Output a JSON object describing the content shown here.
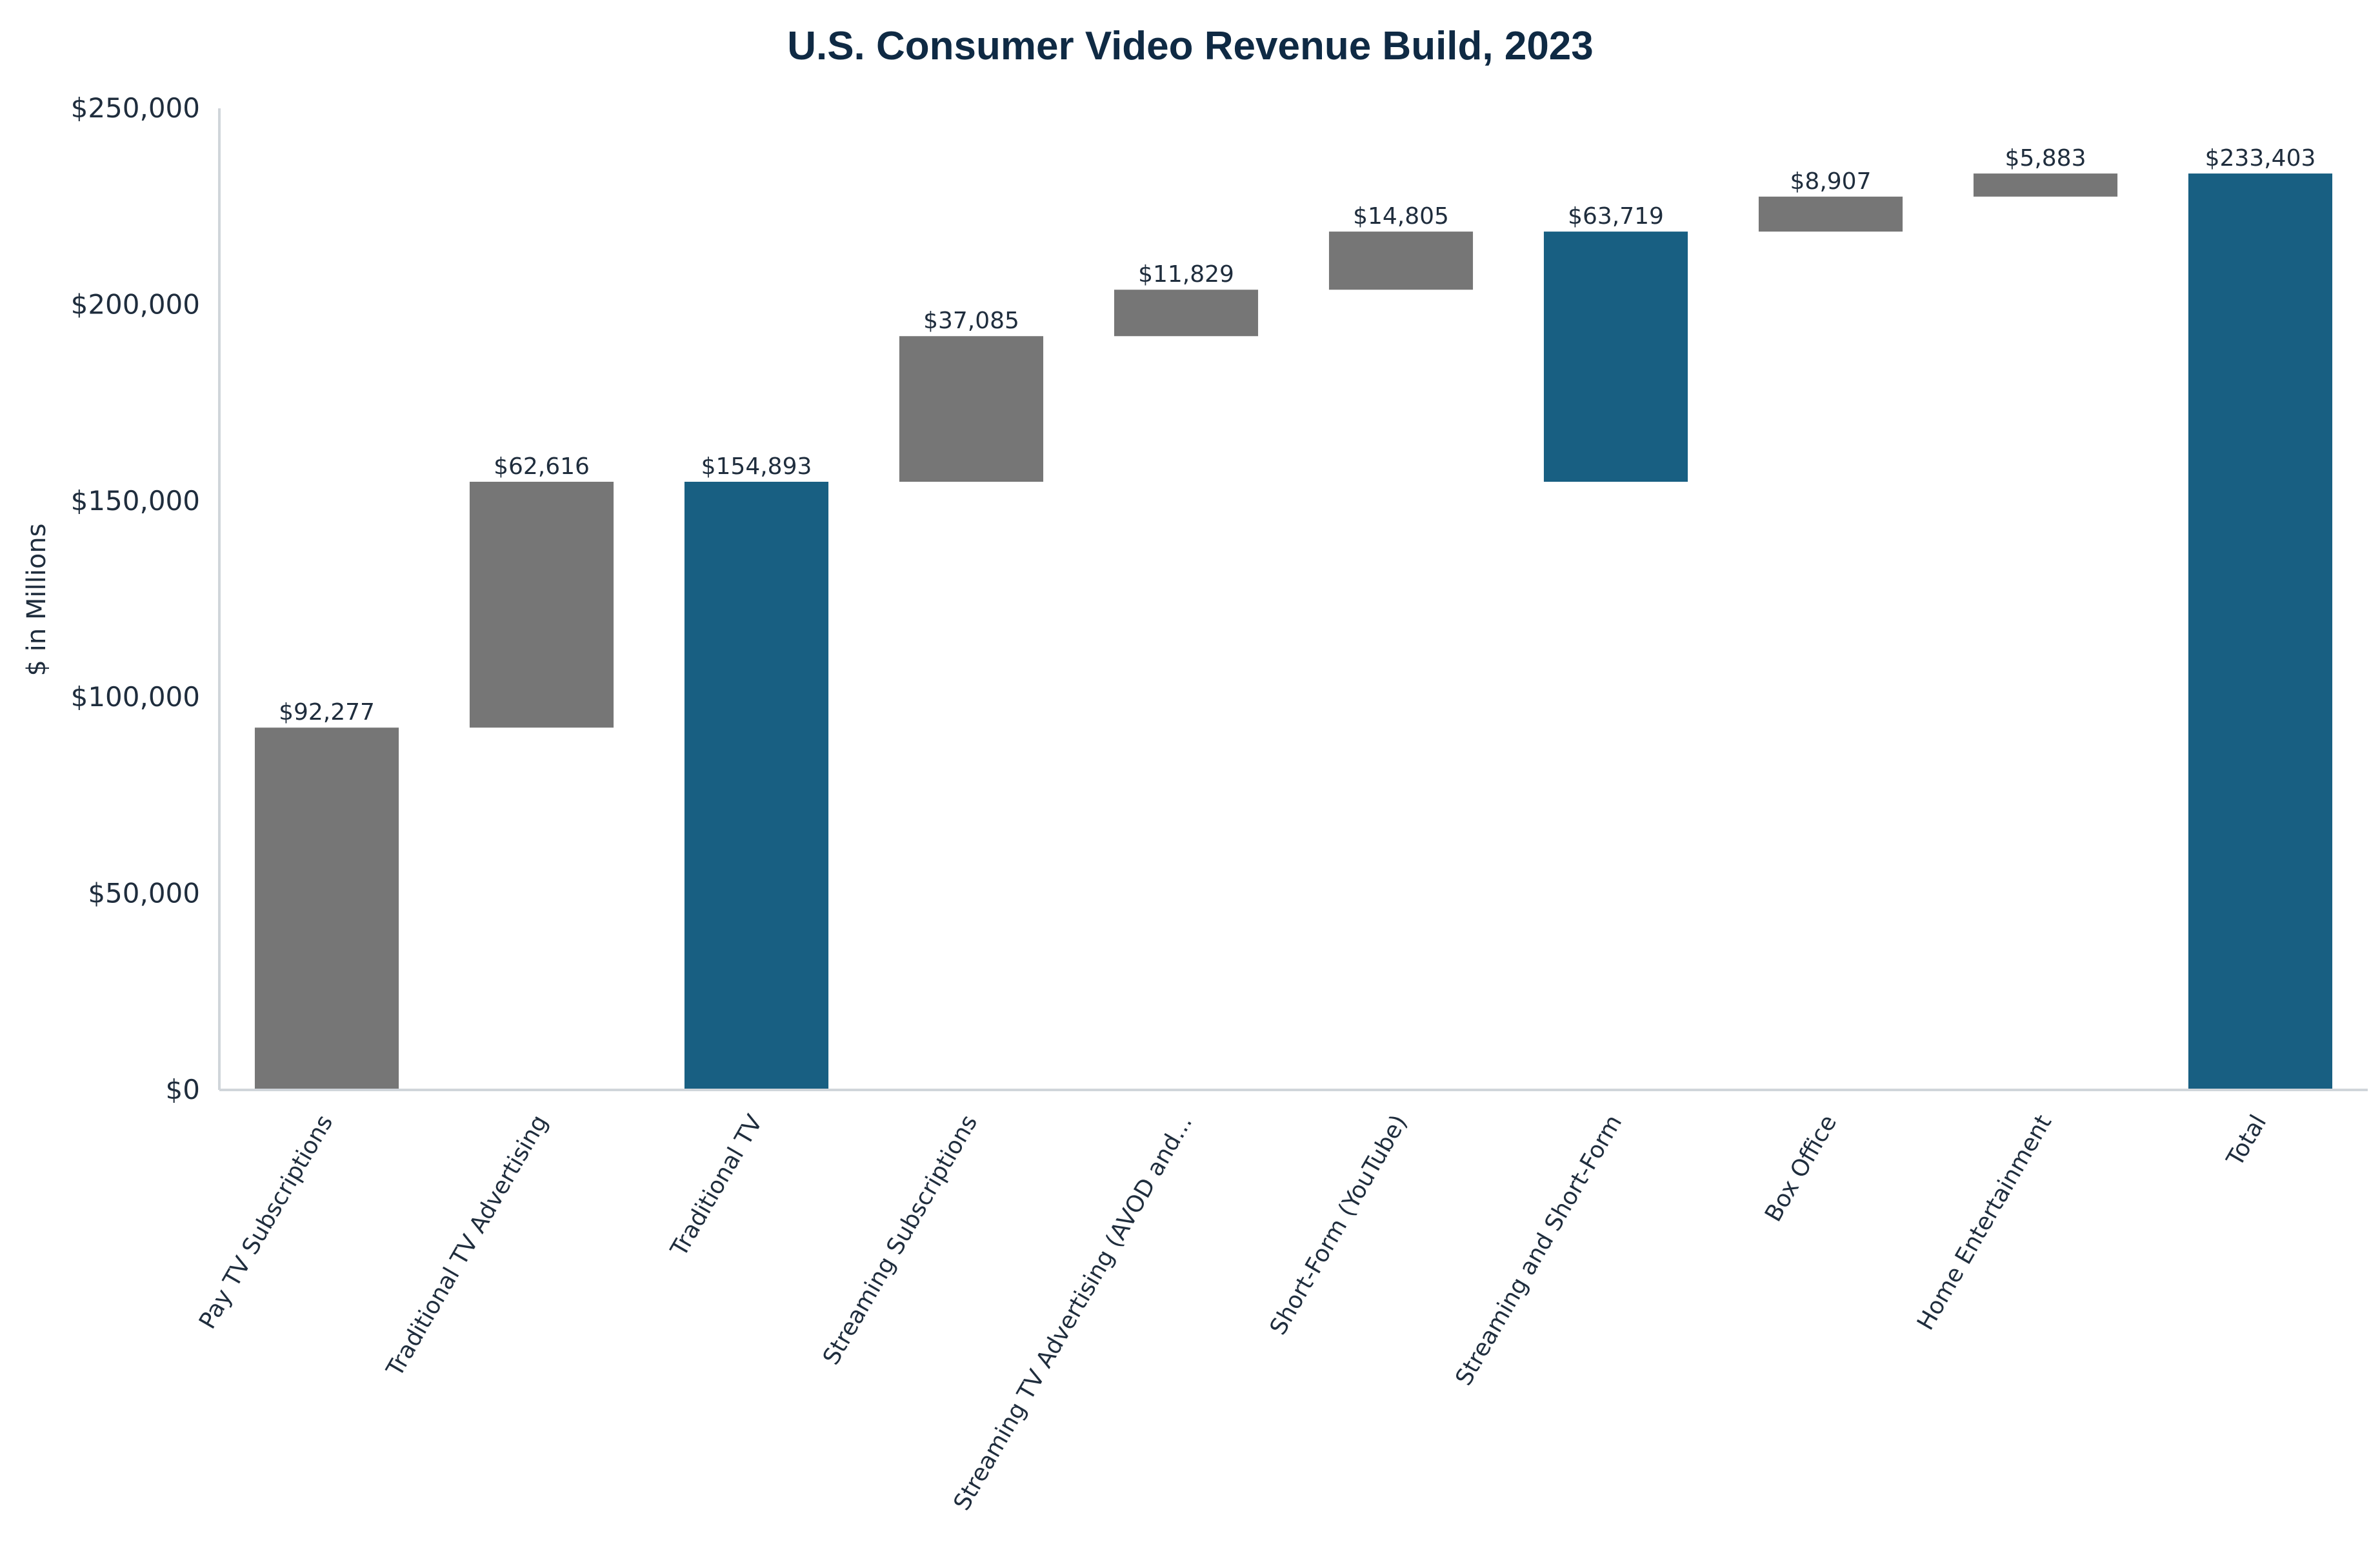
{
  "chart_data": {
    "type": "waterfall",
    "title": "U.S. Consumer Video Revenue Build, 2023",
    "ylabel": "$ in Millions",
    "xlabel": "",
    "ylim": [
      0,
      250000
    ],
    "yticks": [
      0,
      50000,
      100000,
      150000,
      200000,
      250000
    ],
    "ytick_labels": [
      "$0",
      "$50,000",
      "$100,000",
      "$150,000",
      "$200,000",
      "$250,000"
    ],
    "grid": false,
    "colors": {
      "increment": "#767676",
      "subtotal": "#185f82"
    },
    "bars": [
      {
        "category": "Pay TV Subscriptions",
        "kind": "increment",
        "start": 0,
        "end": 92277,
        "label": "$92,277"
      },
      {
        "category": "Traditional TV Advertising",
        "kind": "increment",
        "start": 92277,
        "end": 154893,
        "label": "$62,616"
      },
      {
        "category": "Traditional TV",
        "kind": "subtotal",
        "start": 0,
        "end": 154893,
        "label": "$154,893"
      },
      {
        "category": "Streaming Subscriptions",
        "kind": "increment",
        "start": 154893,
        "end": 191978,
        "label": "$37,085"
      },
      {
        "category": "Streaming TV Advertising (AVOD and...",
        "kind": "increment",
        "start": 191978,
        "end": 203807,
        "label": "$11,829"
      },
      {
        "category": "Short-Form (YouTube)",
        "kind": "increment",
        "start": 203807,
        "end": 218612,
        "label": "$14,805"
      },
      {
        "category": "Streaming and Short-Form",
        "kind": "subtotal",
        "start": 154893,
        "end": 218612,
        "label": "$63,719"
      },
      {
        "category": "Box Office",
        "kind": "increment",
        "start": 218612,
        "end": 227519,
        "label": "$8,907"
      },
      {
        "category": "Home Entertainment",
        "kind": "increment",
        "start": 227519,
        "end": 233402,
        "label": "$5,883"
      },
      {
        "category": "Total",
        "kind": "subtotal",
        "start": 0,
        "end": 233403,
        "label": "$233,403"
      }
    ]
  }
}
